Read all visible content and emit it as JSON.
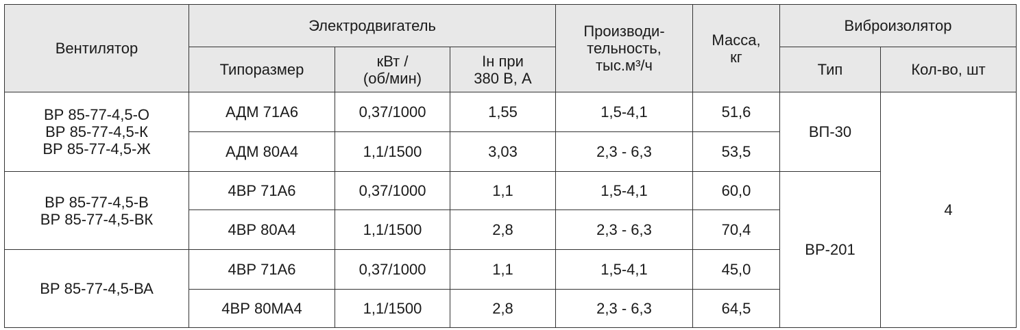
{
  "header": {
    "fan": "Вентилятор",
    "motor": "Электродвигатель",
    "size": "Типоразмер",
    "power": "кВт /\n(об/мин)",
    "current": "Iн при\n380 В, А",
    "capacity": "Производи-\nтельность,\nтыс.м³/ч",
    "mass": "Масса,\nкг",
    "isolator": "Виброизолятор",
    "type": "Тип",
    "qty": "Кол-во, шт"
  },
  "groups": [
    {
      "fan": "ВР 85-77-4,5-О\nВР 85-77-4,5-К\nВР 85-77-4,5-Ж",
      "rows": [
        [
          "АДМ 71А6",
          "0,37/1000",
          "1,55",
          "1,5-4,1",
          "51,6"
        ],
        [
          "АДМ 80А4",
          "1,1/1500",
          "3,03",
          "2,3 - 6,3",
          "53,5"
        ]
      ]
    },
    {
      "fan": "ВР 85-77-4,5-В\nВР 85-77-4,5-ВК",
      "rows": [
        [
          "4ВР 71А6",
          "0,37/1000",
          "1,1",
          "1,5-4,1",
          "60,0"
        ],
        [
          "4ВР 80А4",
          "1,1/1500",
          "2,8",
          "2,3 - 6,3",
          "70,4"
        ]
      ]
    },
    {
      "fan": "ВР 85-77-4,5-ВА",
      "rows": [
        [
          "4ВР 71А6",
          "0,37/1000",
          "1,1",
          "1,5-4,1",
          "45,0"
        ],
        [
          "4ВР 80МА4",
          "1,1/1500",
          "2,8",
          "2,3 - 6,3",
          "64,5"
        ]
      ]
    }
  ],
  "isolators": [
    "ВП-30",
    "ВР-201"
  ],
  "qty": "4"
}
